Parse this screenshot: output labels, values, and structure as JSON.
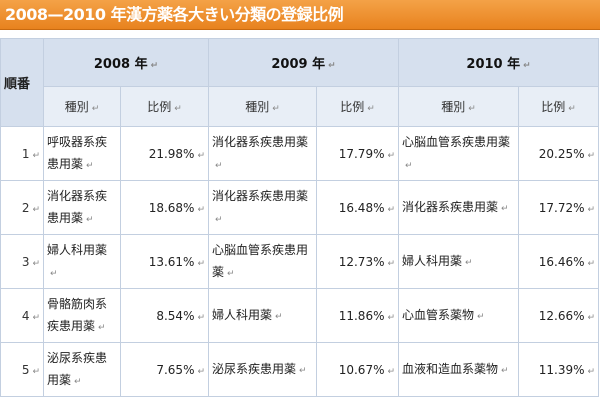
{
  "title": "2008—2010 年漢方薬各大きい分類の登録比例",
  "rank_header": "順番",
  "years": [
    "2008 年",
    "2009 年",
    "2010 年"
  ],
  "sub_headers": {
    "kind": "種別",
    "ratio": "比例"
  },
  "rows": [
    {
      "rank": "1",
      "y2008": {
        "kind": "呼吸器系疾患用薬",
        "ratio": "21.98%"
      },
      "y2009": {
        "kind": "消化器系疾患用薬",
        "ratio": "17.79%"
      },
      "y2010": {
        "kind": "心脳血管系疾患用薬",
        "ratio": "20.25%"
      }
    },
    {
      "rank": "2",
      "y2008": {
        "kind": "消化器系疾患用薬",
        "ratio": "18.68%"
      },
      "y2009": {
        "kind": "消化器系疾患用薬",
        "ratio": "16.48%"
      },
      "y2010": {
        "kind": "消化器系疾患用薬",
        "ratio": "17.72%"
      }
    },
    {
      "rank": "3",
      "y2008": {
        "kind": "婦人科用薬",
        "ratio": "13.61%"
      },
      "y2009": {
        "kind": "心脳血管系疾患用薬",
        "ratio": "12.73%"
      },
      "y2010": {
        "kind": "婦人科用薬",
        "ratio": "16.46%"
      }
    },
    {
      "rank": "4",
      "y2008": {
        "kind": "骨骼筋肉系疾患用薬",
        "ratio": "8.54%"
      },
      "y2009": {
        "kind": "婦人科用薬",
        "ratio": "11.86%"
      },
      "y2010": {
        "kind": "心血管系薬物",
        "ratio": "12.66%"
      }
    },
    {
      "rank": "5",
      "y2008": {
        "kind": "泌尿系疾患用薬",
        "ratio": "7.65%"
      },
      "y2009": {
        "kind": "泌尿系疾患用薬",
        "ratio": "10.67%"
      },
      "y2010": {
        "kind": "血液和造血系薬物",
        "ratio": "11.39%"
      }
    }
  ]
}
